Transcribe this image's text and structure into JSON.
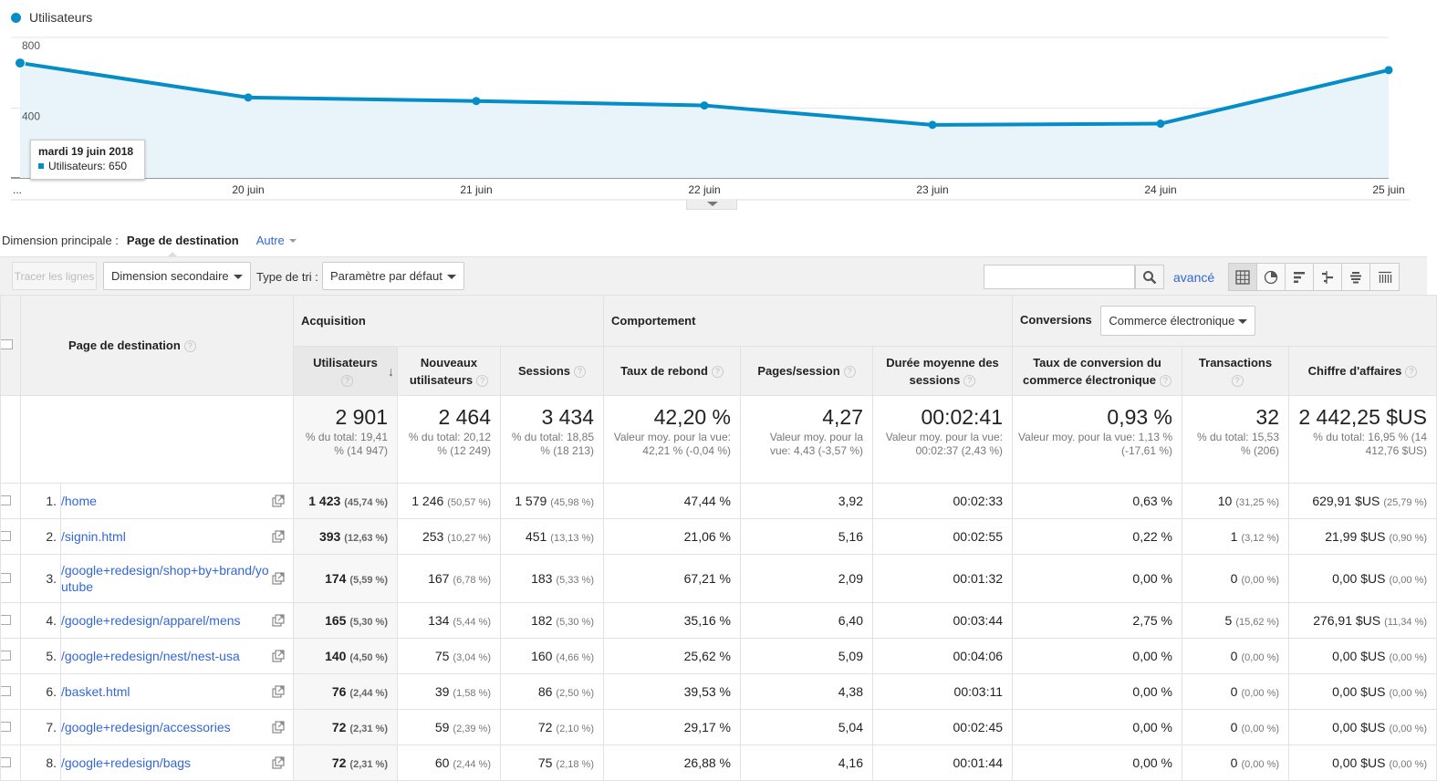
{
  "chart_data": {
    "type": "line",
    "series": [
      {
        "name": "Utilisateurs",
        "x": [
          "19 juin",
          "20 juin",
          "21 juin",
          "22 juin",
          "23 juin",
          "24 juin",
          "25 juin"
        ],
        "values": [
          650,
          455,
          435,
          410,
          300,
          307,
          610
        ]
      }
    ],
    "x_tick_labels": [
      "...",
      "20 juin",
      "21 juin",
      "22 juin",
      "23 juin",
      "24 juin",
      "25 juin"
    ],
    "y_tick_labels": [
      "800",
      "400"
    ],
    "ylim": [
      0,
      800
    ],
    "grid": true,
    "color": "#058dc7",
    "fill": "#e8f4fa"
  },
  "legend": {
    "label": "Utilisateurs"
  },
  "tooltip": {
    "date": "mardi 19 juin 2018",
    "text": "Utilisateurs: 650"
  },
  "dimension_bar": {
    "label": "Dimension principale :",
    "active": "Page de destination",
    "other": "Autre"
  },
  "toolbar": {
    "plot_rows": "Tracer les lignes",
    "secondary_dimension": "Dimension secondaire",
    "sort_type_label": "Type de tri :",
    "sort_type_value": "Paramètre par défaut",
    "search_placeholder": "",
    "advanced": "avancé"
  },
  "table": {
    "group_acquisition": "Acquisition",
    "group_behavior": "Comportement",
    "group_conversions": "Conversions",
    "conversions_select": "Commerce électronique",
    "landing_header": "Page de destination",
    "columns": {
      "users": "Utilisateurs",
      "new_users": "Nouveaux utilisateurs",
      "sessions": "Sessions",
      "bounce": "Taux de rebond",
      "pages": "Pages/session",
      "duration": "Durée moyenne des sessions",
      "conv_rate": "Taux de conversion du commerce électronique",
      "transactions": "Transactions",
      "revenue": "Chiffre d'affaires"
    },
    "totals": {
      "users": {
        "value": "2 901",
        "sub": "% du total: 19,41 % (14 947)"
      },
      "new_users": {
        "value": "2 464",
        "sub": "% du total: 20,12 % (12 249)"
      },
      "sessions": {
        "value": "3 434",
        "sub": "% du total: 18,85 % (18 213)"
      },
      "bounce": {
        "value": "42,20 %",
        "sub": "Valeur moy. pour la vue: 42,21 % (-0,04 %)"
      },
      "pages": {
        "value": "4,27",
        "sub": "Valeur moy. pour la vue: 4,43 (-3,57 %)"
      },
      "duration": {
        "value": "00:02:41",
        "sub": "Valeur moy. pour la vue: 00:02:37 (2,43 %)"
      },
      "conv_rate": {
        "value": "0,93 %",
        "sub": "Valeur moy. pour la vue: 1,13 % (-17,61 %)"
      },
      "transactions": {
        "value": "32",
        "sub": "% du total: 15,53 % (206)"
      },
      "revenue": {
        "value": "2 442,25 $US",
        "sub": "% du total: 16,95 % (14 412,76 $US)"
      }
    },
    "rows": [
      {
        "rank": "1.",
        "page": "/home",
        "users": "1 423",
        "users_pct": "(45,74 %)",
        "new_users": "1 246",
        "new_users_pct": "(50,57 %)",
        "sessions": "1 579",
        "sessions_pct": "(45,98 %)",
        "bounce": "47,44 %",
        "pages": "3,92",
        "duration": "00:02:33",
        "conv": "0,63 %",
        "trans": "10",
        "trans_pct": "(31,25 %)",
        "rev": "629,91 $US",
        "rev_pct": "(25,79 %)"
      },
      {
        "rank": "2.",
        "page": "/signin.html",
        "users": "393",
        "users_pct": "(12,63 %)",
        "new_users": "253",
        "new_users_pct": "(10,27 %)",
        "sessions": "451",
        "sessions_pct": "(13,13 %)",
        "bounce": "21,06 %",
        "pages": "5,16",
        "duration": "00:02:55",
        "conv": "0,22 %",
        "trans": "1",
        "trans_pct": "(3,12 %)",
        "rev": "21,99 $US",
        "rev_pct": "(0,90 %)"
      },
      {
        "rank": "3.",
        "page": "/google+redesign/shop+by+brand/youtube",
        "users": "174",
        "users_pct": "(5,59 %)",
        "new_users": "167",
        "new_users_pct": "(6,78 %)",
        "sessions": "183",
        "sessions_pct": "(5,33 %)",
        "bounce": "67,21 %",
        "pages": "2,09",
        "duration": "00:01:32",
        "conv": "0,00 %",
        "trans": "0",
        "trans_pct": "(0,00 %)",
        "rev": "0,00 $US",
        "rev_pct": "(0,00 %)"
      },
      {
        "rank": "4.",
        "page": "/google+redesign/apparel/mens",
        "users": "165",
        "users_pct": "(5,30 %)",
        "new_users": "134",
        "new_users_pct": "(5,44 %)",
        "sessions": "182",
        "sessions_pct": "(5,30 %)",
        "bounce": "35,16 %",
        "pages": "6,40",
        "duration": "00:03:44",
        "conv": "2,75 %",
        "trans": "5",
        "trans_pct": "(15,62 %)",
        "rev": "276,91 $US",
        "rev_pct": "(11,34 %)"
      },
      {
        "rank": "5.",
        "page": "/google+redesign/nest/nest-usa",
        "users": "140",
        "users_pct": "(4,50 %)",
        "new_users": "75",
        "new_users_pct": "(3,04 %)",
        "sessions": "160",
        "sessions_pct": "(4,66 %)",
        "bounce": "25,62 %",
        "pages": "5,09",
        "duration": "00:04:06",
        "conv": "0,00 %",
        "trans": "0",
        "trans_pct": "(0,00 %)",
        "rev": "0,00 $US",
        "rev_pct": "(0,00 %)"
      },
      {
        "rank": "6.",
        "page": "/basket.html",
        "users": "76",
        "users_pct": "(2,44 %)",
        "new_users": "39",
        "new_users_pct": "(1,58 %)",
        "sessions": "86",
        "sessions_pct": "(2,50 %)",
        "bounce": "39,53 %",
        "pages": "4,38",
        "duration": "00:03:11",
        "conv": "0,00 %",
        "trans": "0",
        "trans_pct": "(0,00 %)",
        "rev": "0,00 $US",
        "rev_pct": "(0,00 %)"
      },
      {
        "rank": "7.",
        "page": "/google+redesign/accessories",
        "users": "72",
        "users_pct": "(2,31 %)",
        "new_users": "59",
        "new_users_pct": "(2,39 %)",
        "sessions": "72",
        "sessions_pct": "(2,10 %)",
        "bounce": "29,17 %",
        "pages": "5,04",
        "duration": "00:02:45",
        "conv": "0,00 %",
        "trans": "0",
        "trans_pct": "(0,00 %)",
        "rev": "0,00 $US",
        "rev_pct": "(0,00 %)"
      },
      {
        "rank": "8.",
        "page": "/google+redesign/bags",
        "users": "72",
        "users_pct": "(2,31 %)",
        "new_users": "60",
        "new_users_pct": "(2,44 %)",
        "sessions": "75",
        "sessions_pct": "(2,18 %)",
        "bounce": "26,88 %",
        "pages": "4,16",
        "duration": "00:01:44",
        "conv": "0,00 %",
        "trans": "0",
        "trans_pct": "(0,00 %)",
        "rev": "0,00 $US",
        "rev_pct": "(0,00 %)"
      }
    ]
  }
}
